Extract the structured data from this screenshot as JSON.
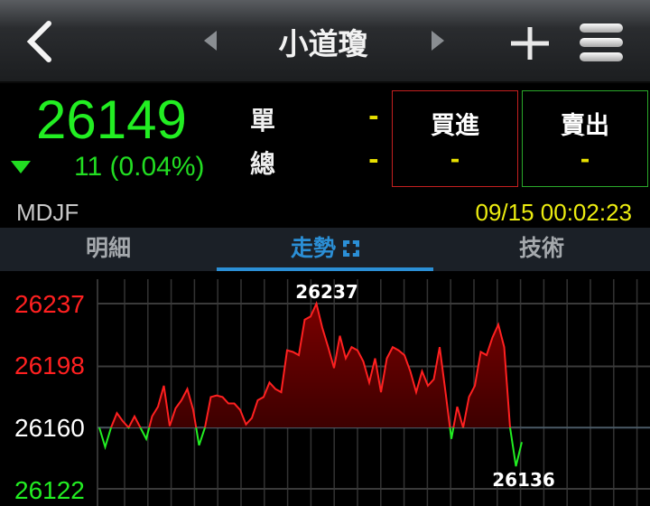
{
  "header": {
    "title": "小道瓊",
    "back_icon": "chevron-left-icon",
    "prev_icon": "triangle-left-icon",
    "next_icon": "triangle-right-icon",
    "add_icon": "plus-icon",
    "menu_icon": "hamburger-icon"
  },
  "quote": {
    "price": "26149",
    "change": "11 (0.04%)",
    "direction": "down",
    "code": "MDJF",
    "datetime": "09/15 00:02:23",
    "single_label": "單",
    "single_value": "-",
    "total_label": "總",
    "total_value": "-",
    "buy_label": "買進",
    "buy_value": "-",
    "sell_label": "賣出",
    "sell_value": "-"
  },
  "colors": {
    "up": "#ff2020",
    "down": "#22ee22",
    "accent": "#2b8fd6",
    "time": "#ecec10"
  },
  "tabs": [
    {
      "label": "明細"
    },
    {
      "label": "走勢",
      "active": true
    },
    {
      "label": "技術"
    }
  ],
  "chart_data": {
    "type": "line",
    "reference": 26160,
    "ylim": [
      26122,
      26237
    ],
    "yticks": [
      "26237",
      "26198",
      "26160",
      "26122"
    ],
    "high_label": "26237",
    "low_label": "26136",
    "grid": true,
    "values": [
      26160,
      26148,
      26160,
      26169,
      26164,
      26160,
      26167,
      26160,
      26153,
      26167,
      26173,
      26186,
      26161,
      26172,
      26177,
      26184,
      26171,
      26149,
      26160,
      26179,
      26180,
      26179,
      26175,
      26175,
      26171,
      26162,
      26166,
      26177,
      26179,
      26188,
      26184,
      26182,
      26208,
      26207,
      26205,
      26227,
      26229,
      26237,
      26222,
      26210,
      26197,
      26217,
      26203,
      26210,
      26208,
      26201,
      26188,
      26203,
      26182,
      26203,
      26210,
      26208,
      26205,
      26195,
      26182,
      26195,
      26186,
      26190,
      26210,
      26182,
      26153,
      26173,
      26160,
      26179,
      26186,
      26207,
      26205,
      26216,
      26224,
      26210,
      26160,
      26136,
      26151
    ]
  }
}
